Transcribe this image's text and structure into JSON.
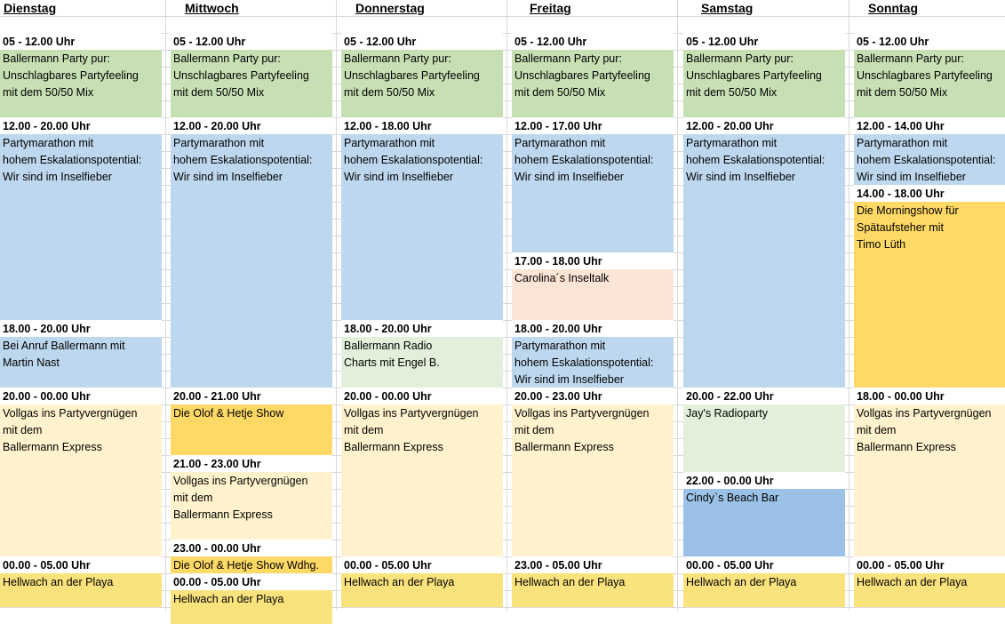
{
  "days": [
    "Dienstag",
    "Mittwoch",
    "Donnerstag",
    "Freitag",
    "Samstag",
    "Sonntag"
  ],
  "colors": {
    "green": "#c6e0b4",
    "blue": "#bdd7ee",
    "peach": "#fce4d6",
    "light_green": "#e2efda",
    "cream": "#fff2cc",
    "gold": "#ffd966",
    "medium_blue": "#9bc2e6",
    "yellow": "#fae27c"
  },
  "schedule": [
    {
      "day": "Dienstag",
      "slots": [
        {
          "time": "05 - 12.00 Uhr",
          "title": "Ballermann Party pur:\nUnschlagbares Partyfeeling\nmit dem 50/50 Mix",
          "color": "green"
        },
        {
          "time": "12.00 - 20.00 Uhr",
          "title": "Partymarathon mit\nhohem Eskalationspotential:\nWir sind im Inselfieber",
          "color": "blue"
        },
        {
          "time": "18.00 - 20.00 Uhr",
          "title": "Bei Anruf Ballermann mit\nMartin Nast",
          "color": "blue"
        },
        {
          "time": "20.00 - 00.00 Uhr",
          "title": "Vollgas ins Partyvergnügen\nmit dem\nBallermann Express",
          "color": "cream"
        },
        {
          "time": "00.00 - 05.00 Uhr",
          "title": "Hellwach an der Playa",
          "color": "yellow"
        }
      ]
    },
    {
      "day": "Mittwoch",
      "slots": [
        {
          "time": "05 - 12.00 Uhr",
          "title": "Ballermann Party pur:\nUnschlagbares Partyfeeling\nmit dem 50/50 Mix",
          "color": "green"
        },
        {
          "time": "12.00 - 20.00 Uhr",
          "title": "Partymarathon mit\nhohem Eskalationspotential:\nWir sind im Inselfieber",
          "color": "blue"
        },
        {
          "time": "20.00 - 21.00 Uhr",
          "title": "Die Olof & Hetje Show",
          "color": "gold"
        },
        {
          "time": "21.00 - 23.00 Uhr",
          "title": "Vollgas ins Partyvergnügen\nmit dem\nBallermann Express",
          "color": "cream"
        },
        {
          "time": "23.00 - 00.00 Uhr",
          "title": "Die Olof & Hetje Show Wdhg.",
          "color": "gold"
        },
        {
          "time": "00.00 - 05.00 Uhr",
          "title": "Hellwach an der Playa",
          "color": "yellow"
        }
      ]
    },
    {
      "day": "Donnerstag",
      "slots": [
        {
          "time": "05 - 12.00 Uhr",
          "title": "Ballermann Party pur:\nUnschlagbares Partyfeeling\nmit dem 50/50 Mix",
          "color": "green"
        },
        {
          "time": "12.00 - 18.00 Uhr",
          "title": "Partymarathon mit\nhohem Eskalationspotential:\nWir sind im Inselfieber",
          "color": "blue"
        },
        {
          "time": "18.00 - 20.00 Uhr",
          "title": "Ballermann Radio\nCharts mit Engel B.",
          "color": "lgreen"
        },
        {
          "time": "20.00 - 00.00 Uhr",
          "title": "Vollgas ins Partyvergnügen\nmit dem\nBallermann Express",
          "color": "cream"
        },
        {
          "time": "00.00 - 05.00 Uhr",
          "title": "Hellwach an der Playa",
          "color": "yellow"
        }
      ]
    },
    {
      "day": "Freitag",
      "slots": [
        {
          "time": "05 - 12.00 Uhr",
          "title": "Ballermann Party pur:\nUnschlagbares Partyfeeling\nmit dem 50/50 Mix",
          "color": "green"
        },
        {
          "time": "12.00 - 17.00 Uhr",
          "title": "Partymarathon mit\nhohem Eskalationspotential:\nWir sind im Inselfieber",
          "color": "blue"
        },
        {
          "time": "17.00 - 18.00 Uhr",
          "title": "Carolina´s Inseltalk",
          "color": "peach"
        },
        {
          "time": "18.00 - 20.00 Uhr",
          "title": "Partymarathon mit\nhohem Eskalationspotential:\nWir sind im Inselfieber",
          "color": "blue"
        },
        {
          "time": "20.00 - 23.00 Uhr",
          "title": "Vollgas ins Partyvergnügen\nmit dem\nBallermann Express",
          "color": "cream"
        },
        {
          "time": "23.00 - 05.00 Uhr",
          "title": "Hellwach an der Playa",
          "color": "yellow"
        }
      ]
    },
    {
      "day": "Samstag",
      "slots": [
        {
          "time": "05 - 12.00 Uhr",
          "title": "Ballermann Party pur:\nUnschlagbares Partyfeeling\nmit dem 50/50 Mix",
          "color": "green"
        },
        {
          "time": "12.00 - 20.00 Uhr",
          "title": "Partymarathon mit\nhohem Eskalationspotential:\nWir sind im Inselfieber",
          "color": "blue"
        },
        {
          "time": "20.00 - 22.00 Uhr",
          "title": "Jay's Radioparty",
          "color": "lgreen"
        },
        {
          "time": "22.00 - 00.00 Uhr",
          "title": "Cindy`s Beach Bar",
          "color": "mblue"
        },
        {
          "time": "00.00 - 05.00 Uhr",
          "title": "Hellwach an der Playa",
          "color": "yellow"
        }
      ]
    },
    {
      "day": "Sonntag",
      "slots": [
        {
          "time": "05 - 12.00 Uhr",
          "title": "Ballermann Party pur:\nUnschlagbares Partyfeeling\nmit dem 50/50 Mix",
          "color": "green"
        },
        {
          "time": "12.00 - 14.00 Uhr",
          "title": "Partymarathon mit\nhohem Eskalationspotential:\nWir sind im Inselfieber",
          "color": "blue"
        },
        {
          "time": "14.00 - 18.00 Uhr",
          "title": "Die Morningshow für\nSpätaufsteher mit\nTimo Lüth",
          "color": "gold"
        },
        {
          "time": "18.00 - 00.00 Uhr",
          "title": "Vollgas ins Partyvergnügen\nmit dem\nBallermann Express",
          "color": "cream"
        },
        {
          "time": "00.00 - 05.00 Uhr",
          "title": "Hellwach an der Playa",
          "color": "yellow"
        }
      ]
    }
  ]
}
